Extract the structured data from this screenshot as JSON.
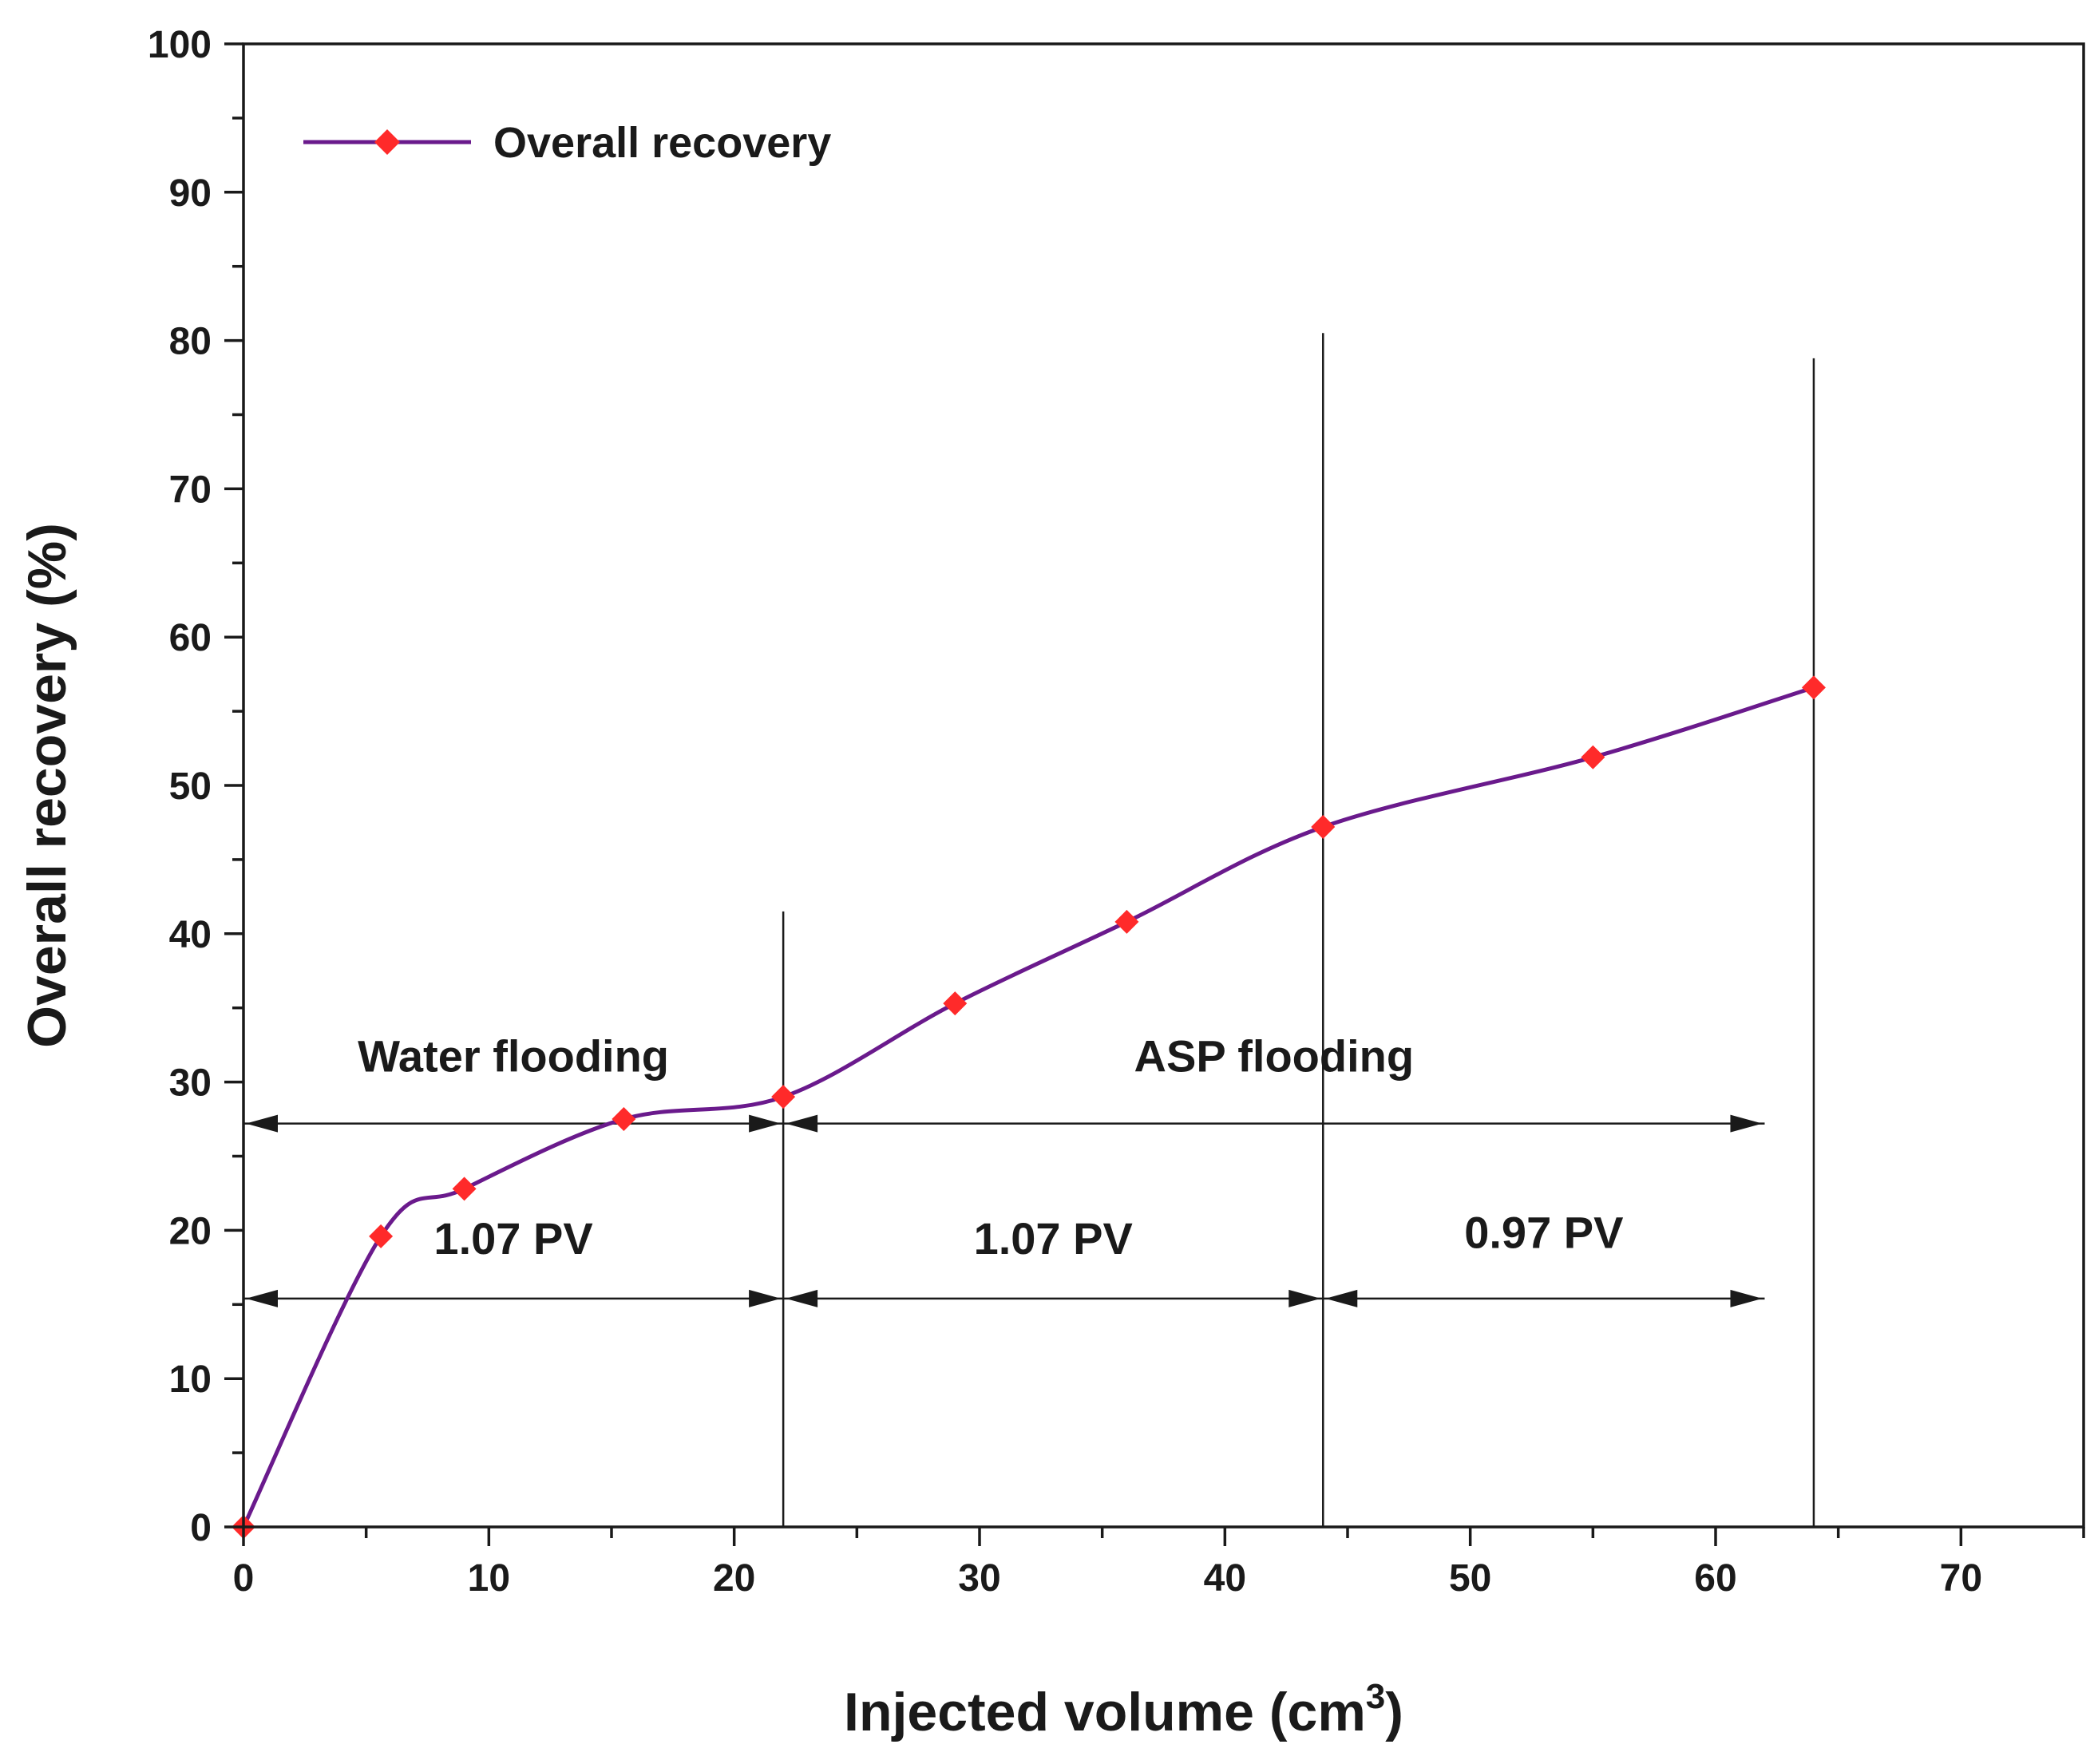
{
  "chart_data": {
    "type": "line",
    "title": "",
    "xlabel": "Injected volume (cm",
    "xlabel_sup": "3",
    "xlabel_close": ")",
    "ylabel": "Overall recovery (%)",
    "xlim": [
      0,
      75
    ],
    "ylim": [
      0,
      100
    ],
    "x_ticks": [
      0,
      10,
      20,
      30,
      40,
      50,
      60,
      70
    ],
    "y_ticks": [
      0,
      10,
      20,
      30,
      40,
      50,
      60,
      70,
      80,
      90,
      100
    ],
    "x_tick_labels": [
      "0",
      "10",
      "20",
      "30",
      "40",
      "50",
      "60",
      "70"
    ],
    "y_tick_labels": [
      "0",
      "10",
      "20",
      "30",
      "40",
      "50",
      "60",
      "70",
      "80",
      "90",
      "100"
    ],
    "grid": false,
    "legend": {
      "label": "Overall recovery",
      "position": "top-left"
    },
    "series": [
      {
        "name": "Overall recovery",
        "line_color": "#6a1a8c",
        "marker_color": "#ff2a2a",
        "marker": "diamond",
        "x": [
          0,
          5.6,
          9,
          15.5,
          22,
          29,
          36,
          44,
          55,
          64
        ],
        "y": [
          0,
          19.6,
          22.8,
          27.5,
          29,
          35.3,
          40.8,
          47.2,
          51.9,
          56.6
        ]
      }
    ],
    "vertical_lines": [
      {
        "x": 22,
        "y_top": 41.5
      },
      {
        "x": 44,
        "y_top": 80.5
      },
      {
        "x": 64,
        "y_top": 78.8
      }
    ],
    "spans": [
      {
        "label": "Water flooding",
        "x_start": 0,
        "x_end": 22,
        "y": 27.2,
        "label_y": 30.7
      },
      {
        "label": "ASP flooding",
        "x_start": 22,
        "x_end": 62,
        "y": 27.2,
        "label_y": 30.7
      },
      {
        "label": "1.07 PV",
        "x_start": 0,
        "x_end": 22,
        "y": 15.4,
        "label_y": 18.4
      },
      {
        "label": "1.07 PV",
        "x_start": 22,
        "x_end": 44,
        "y": 15.4,
        "label_y": 18.4
      },
      {
        "label": "0.97 PV",
        "x_start": 44,
        "x_end": 62,
        "y": 15.4,
        "label_y": 18.8
      }
    ]
  }
}
